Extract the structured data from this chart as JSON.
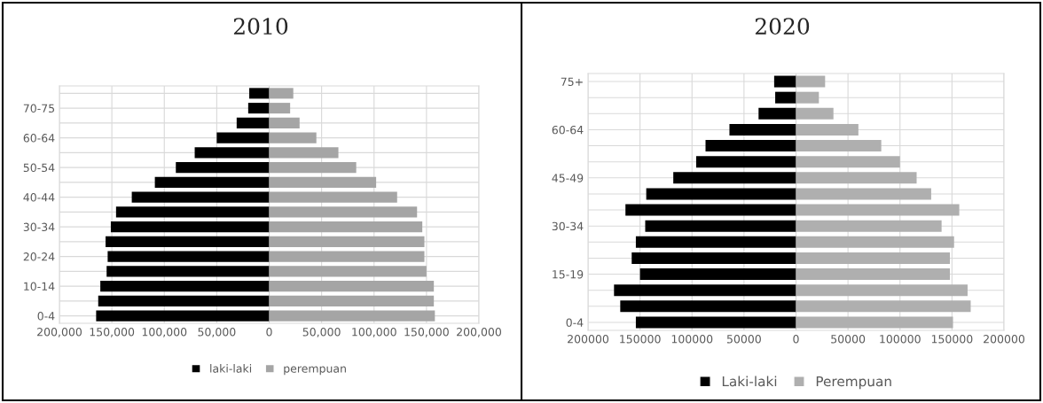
{
  "chart_data": [
    {
      "type": "bar",
      "orientation": "horizontal",
      "title": "2010",
      "categories": [
        null,
        "70-75",
        null,
        "60-64",
        null,
        "50-54",
        null,
        "40-44",
        null,
        "30-34",
        null,
        "20-24",
        null,
        "10-14",
        null,
        "0-4"
      ],
      "series": [
        {
          "name": "laki-laki",
          "color": "#000000",
          "values": [
            -19000,
            -20000,
            -31000,
            -50000,
            -71000,
            -89000,
            -109000,
            -131000,
            -146000,
            -151000,
            -156000,
            -154000,
            -155000,
            -161000,
            -163000,
            -165000
          ]
        },
        {
          "name": "perempuan",
          "color": "#a5a5a5",
          "values": [
            23000,
            20000,
            29000,
            45000,
            66000,
            83000,
            102000,
            122000,
            141000,
            146000,
            148000,
            148000,
            150000,
            157000,
            157000,
            158000
          ]
        }
      ],
      "xlim": [
        -200000,
        200000
      ],
      "xticks": [
        {
          "value": -200000,
          "label": "200,000"
        },
        {
          "value": -150000,
          "label": "150,000"
        },
        {
          "value": -100000,
          "label": "100,000"
        },
        {
          "value": -50000,
          "label": "50,000"
        },
        0,
        {
          "value": 50000,
          "label": "50,000"
        },
        {
          "value": 100000,
          "label": "100,000"
        },
        {
          "value": 150000,
          "label": "150,000"
        },
        {
          "value": 200000,
          "label": "200,000"
        }
      ],
      "grid": true,
      "legend": "bottom",
      "stacked": true
    },
    {
      "type": "bar",
      "orientation": "horizontal",
      "title": "2020",
      "categories": [
        "75+",
        null,
        null,
        "60-64",
        null,
        null,
        "45-49",
        null,
        null,
        "30-34",
        null,
        null,
        "15-19",
        null,
        null,
        "0-4"
      ],
      "series": [
        {
          "name": "Laki-laki",
          "color": "#000000",
          "values": [
            -21000,
            -20000,
            -36000,
            -64000,
            -87000,
            -96000,
            -118000,
            -144000,
            -164000,
            -145000,
            -154000,
            -158000,
            -150000,
            -175000,
            -169000,
            -154000
          ]
        },
        {
          "name": "Perempuan",
          "color": "#afafaf",
          "values": [
            28000,
            22000,
            36000,
            60000,
            82000,
            100000,
            116000,
            130000,
            157000,
            140000,
            152000,
            148000,
            148000,
            165000,
            168000,
            151000
          ]
        }
      ],
      "xlim": [
        -200000,
        200000
      ],
      "xticks": [
        {
          "value": -200000,
          "label": "200000"
        },
        {
          "value": -150000,
          "label": "150000"
        },
        {
          "value": -100000,
          "label": "100000"
        },
        {
          "value": -50000,
          "label": "50000"
        },
        0,
        {
          "value": 50000,
          "label": "50000"
        },
        {
          "value": 100000,
          "label": "100000"
        },
        {
          "value": 150000,
          "label": "150000"
        },
        {
          "value": 200000,
          "label": "200000"
        }
      ],
      "grid": true,
      "legend": "bottom",
      "stacked": true
    }
  ]
}
